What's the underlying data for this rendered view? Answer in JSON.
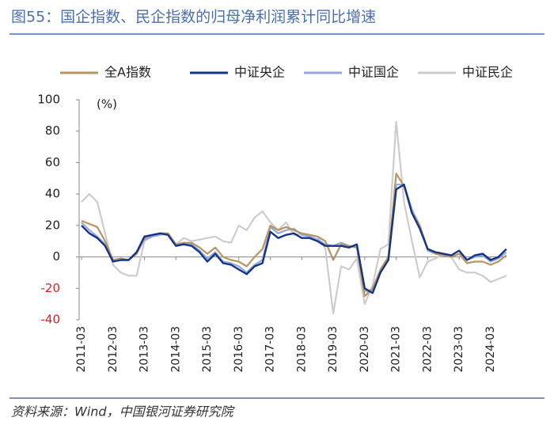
{
  "chart_data": {
    "type": "line",
    "title": "图55：国企指数、民企指数的归母净利润累计同比增速",
    "unit_label": "(%)",
    "source": "资料来源：Wind，中国银河证券研究院",
    "categories": [
      "2011-03",
      null,
      null,
      null,
      "2012-03",
      null,
      null,
      null,
      "2013-03",
      null,
      null,
      null,
      "2014-03",
      null,
      null,
      null,
      "2015-03",
      null,
      null,
      null,
      "2016-03",
      null,
      null,
      null,
      "2017-03",
      null,
      null,
      null,
      "2018-03",
      null,
      null,
      null,
      "2019-03",
      null,
      null,
      null,
      "2020-03",
      null,
      null,
      null,
      "2021-03",
      null,
      null,
      null,
      "2022-03",
      null,
      null,
      null,
      "2023-03",
      null,
      null,
      null,
      "2024-03",
      null,
      null
    ],
    "series": [
      {
        "name": "全A指数",
        "color": "#b89460",
        "values": [
          23,
          21,
          19,
          10,
          -2,
          -1,
          -2,
          2,
          12,
          14,
          15,
          15,
          8,
          9,
          9,
          6,
          2,
          6,
          0,
          -2,
          -3,
          -6,
          0,
          5,
          20,
          17,
          19,
          17,
          15,
          14,
          13,
          10,
          -2,
          8,
          7,
          6,
          -25,
          -20,
          -8,
          0,
          53,
          45,
          28,
          20,
          5,
          2,
          1,
          0,
          2,
          -4,
          -3,
          -3,
          -5,
          -3,
          1
        ]
      },
      {
        "name": "中证央企",
        "color": "#13348a",
        "values": [
          20,
          15,
          12,
          7,
          -3,
          -2,
          -2,
          3,
          13,
          14,
          15,
          14,
          7,
          8,
          7,
          3,
          -3,
          2,
          -4,
          -5,
          -8,
          -11,
          -6,
          -4,
          16,
          12,
          14,
          15,
          12,
          12,
          10,
          7,
          7,
          7,
          6,
          8,
          -20,
          -23,
          -10,
          -2,
          43,
          46,
          28,
          18,
          5,
          3,
          2,
          1,
          4,
          -2,
          1,
          2,
          -2,
          0,
          5
        ]
      },
      {
        "name": "中证国企",
        "color": "#92abdc",
        "values": [
          22,
          17,
          13,
          8,
          -2,
          -2,
          -2,
          2,
          11,
          13,
          14,
          15,
          7,
          9,
          8,
          4,
          -1,
          3,
          -3,
          -4,
          -6,
          -10,
          -5,
          -2,
          19,
          15,
          17,
          18,
          14,
          13,
          11,
          8,
          7,
          9,
          7,
          6,
          -22,
          -21,
          -9,
          -2,
          46,
          46,
          30,
          20,
          4,
          2,
          1,
          0,
          2,
          -2,
          0,
          1,
          -3,
          -1,
          3
        ]
      },
      {
        "name": "中证民企",
        "color": "#cccccc",
        "values": [
          35,
          40,
          35,
          15,
          -5,
          -10,
          -12,
          -12,
          10,
          13,
          15,
          15,
          8,
          12,
          10,
          11,
          12,
          13,
          10,
          9,
          20,
          17,
          25,
          29,
          22,
          17,
          22,
          14,
          15,
          14,
          13,
          5,
          -36,
          -6,
          -8,
          -1,
          -30,
          -18,
          5,
          8,
          86,
          35,
          10,
          -13,
          -3,
          -1,
          2,
          0,
          -8,
          -10,
          -10,
          -12,
          -16,
          -14,
          -12
        ]
      }
    ],
    "ylim": [
      -40,
      100
    ],
    "yticks": [
      -40,
      -20,
      0,
      20,
      40,
      60,
      80,
      100
    ],
    "negative_tick_color": "#e02020",
    "legend": "top"
  }
}
